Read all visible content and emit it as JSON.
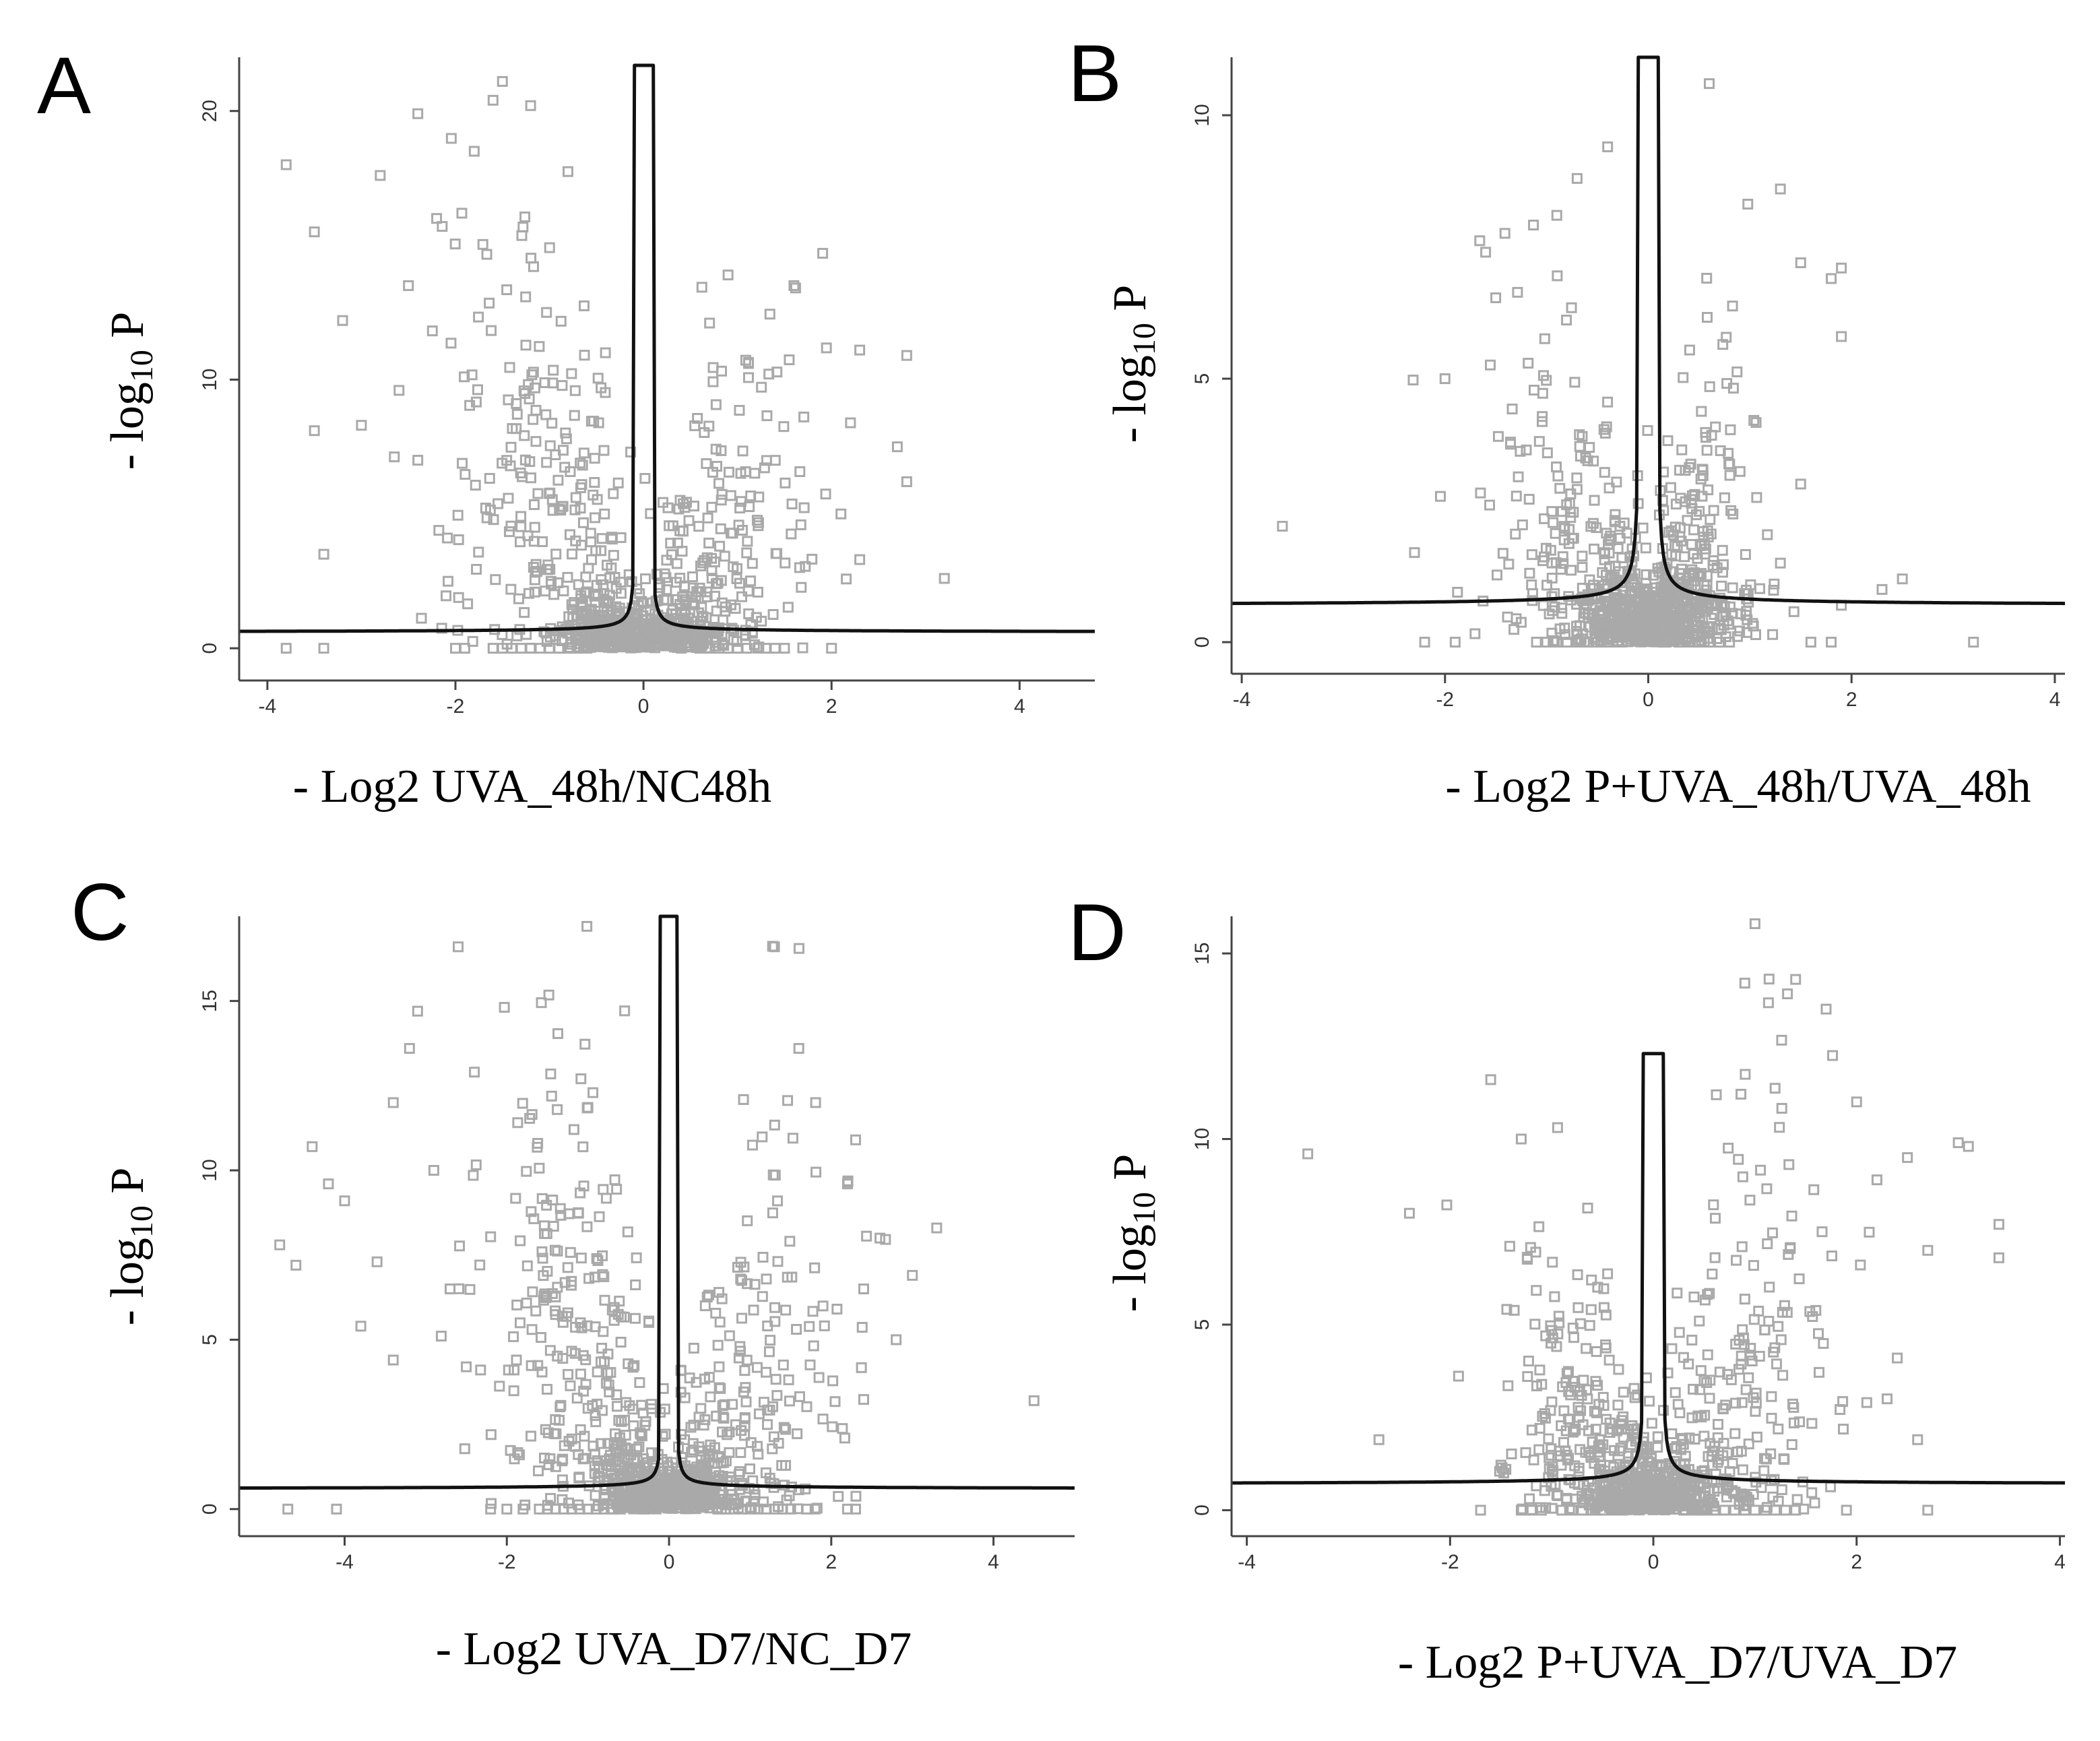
{
  "colors": {
    "point": "#a9a9a9",
    "threshold": "#111111",
    "axis": "#444444"
  },
  "chart_data": [
    {
      "type": "scatter",
      "panel": "A",
      "xlabel": "- Log2 UVA_48h/NC48h",
      "ylabel_main": "- log",
      "ylabel_sub": "10",
      "ylabel_end": " P",
      "xlim": [
        -4.3,
        4.8
      ],
      "ylim": [
        -1.2,
        22.0
      ],
      "xticks": [
        -4,
        -2,
        0,
        2,
        4
      ],
      "yticks": [
        0,
        10,
        20
      ],
      "threshold": {
        "peak": 21.7,
        "spread": 0.8,
        "base": 0.6
      },
      "clusters": [
        {
          "n": 260,
          "xc": -1.0,
          "xs": 0.6,
          "ys": 6.5
        },
        {
          "n": 190,
          "xc": 0.8,
          "xs": 0.55,
          "ys": 5
        },
        {
          "n": 120,
          "xc": -0.35,
          "xs": 0.2,
          "ys": 1.2
        },
        {
          "n": 80,
          "xc": 0.35,
          "xs": 0.2,
          "ys": 1.2
        }
      ],
      "outliers": [
        [
          -3.8,
          18
        ],
        [
          -3.5,
          15.5
        ],
        [
          -3.2,
          12.2
        ],
        [
          -3.4,
          3.5
        ],
        [
          -2.8,
          17.6
        ],
        [
          -2.4,
          19.9
        ],
        [
          -1.5,
          21.1
        ],
        [
          -1.6,
          20.4
        ],
        [
          -1.2,
          20.2
        ],
        [
          -2.2,
          16
        ],
        [
          -2.5,
          13.5
        ],
        [
          -3.0,
          8.3
        ],
        [
          -2.6,
          9.6
        ],
        [
          -2.4,
          7.0
        ],
        [
          -1.8,
          18.5
        ],
        [
          -3.5,
          8.1
        ],
        [
          1.6,
          13.5
        ],
        [
          2.3,
          11.1
        ],
        [
          2.8,
          10.9
        ],
        [
          2.7,
          7.5
        ],
        [
          2.8,
          6.2
        ],
        [
          3.2,
          2.6
        ],
        [
          2.1,
          5.0
        ],
        [
          2.3,
          3.3
        ]
      ],
      "baseline_points": [
        -3.8,
        -3.4,
        -2.0,
        -1.9,
        -1.6,
        -1.5,
        -1.4,
        -1.3,
        -1.2,
        -1.1,
        -1.0,
        -0.9,
        -0.8,
        -0.7,
        -0.6,
        0.6,
        0.7,
        0.8,
        0.9,
        1.0,
        1.1,
        1.3,
        1.4,
        1.5,
        2.0
      ]
    },
    {
      "type": "scatter",
      "panel": "B",
      "xlabel": "- Log2 P+UVA_48h/UVA_48h",
      "ylabel_main": "- log",
      "ylabel_sub": "10",
      "ylabel_end": " P",
      "xlim": [
        -4.1,
        4.1
      ],
      "ylim": [
        -0.6,
        11.1
      ],
      "xticks": [
        -4,
        -2,
        0,
        2,
        4
      ],
      "yticks": [
        0,
        5,
        10
      ],
      "threshold": {
        "peak": 11.1,
        "spread": 0.85,
        "base": 0.7
      },
      "clusters": [
        {
          "n": 230,
          "xc": -0.6,
          "xs": 0.55,
          "ys": 2.8
        },
        {
          "n": 200,
          "xc": 0.45,
          "xs": 0.28,
          "ys": 3.4
        },
        {
          "n": 140,
          "xc": -0.1,
          "xs": 0.2,
          "ys": 0.9
        },
        {
          "n": 60,
          "xc": 0.15,
          "xs": 0.2,
          "ys": 0.9
        }
      ],
      "outliers": [
        [
          -3.6,
          2.2
        ],
        [
          -2.3,
          1.7
        ],
        [
          -2.0,
          5.0
        ],
        [
          -1.6,
          7.4
        ],
        [
          -0.9,
          8.1
        ],
        [
          -0.7,
          8.8
        ],
        [
          -0.4,
          9.4
        ],
        [
          0.6,
          10.6
        ],
        [
          1.3,
          8.6
        ],
        [
          1.5,
          7.2
        ],
        [
          1.8,
          6.9
        ],
        [
          1.9,
          7.1
        ],
        [
          1.9,
          5.8
        ],
        [
          2.5,
          1.2
        ],
        [
          2.3,
          1.0
        ],
        [
          1.9,
          0.7
        ],
        [
          1.3,
          1.5
        ],
        [
          1.5,
          3.0
        ]
      ],
      "baseline_points": [
        -2.2,
        -1.9,
        -1.1,
        -1.0,
        -0.9,
        -0.8,
        -0.7,
        -0.6,
        -0.5,
        -0.4,
        -0.3,
        0.3,
        0.4,
        0.5,
        0.6,
        0.7,
        0.8,
        1.6,
        1.8,
        3.2
      ]
    },
    {
      "type": "scatter",
      "panel": "C",
      "xlabel": "- Log2 UVA_D7/NC_D7",
      "ylabel_main": "- log",
      "ylabel_sub": "10",
      "ylabel_end": " P",
      "xlim": [
        -5.3,
        5.0
      ],
      "ylim": [
        -0.8,
        17.5
      ],
      "xticks": [
        -4,
        -2,
        0,
        2,
        4
      ],
      "yticks": [
        0,
        5,
        10,
        15
      ],
      "threshold": {
        "peak": 17.5,
        "spread": 0.55,
        "base": 0.6
      },
      "clusters": [
        {
          "n": 270,
          "xc": -1.1,
          "xs": 0.6,
          "ys": 5.5
        },
        {
          "n": 210,
          "xc": 0.9,
          "xs": 0.6,
          "ys": 4.5
        },
        {
          "n": 110,
          "xc": -0.35,
          "xs": 0.22,
          "ys": 1.2
        },
        {
          "n": 80,
          "xc": 0.35,
          "xs": 0.22,
          "ys": 1.2
        }
      ],
      "outliers": [
        [
          -4.8,
          7.8
        ],
        [
          -4.6,
          7.2
        ],
        [
          -4.4,
          10.7
        ],
        [
          -4.2,
          9.6
        ],
        [
          -4.0,
          9.1
        ],
        [
          -3.8,
          5.4
        ],
        [
          -3.6,
          7.3
        ],
        [
          -3.4,
          4.4
        ],
        [
          -3.2,
          13.6
        ],
        [
          -3.1,
          14.7
        ],
        [
          -2.6,
          16.6
        ],
        [
          -3.4,
          12.0
        ],
        [
          -2.9,
          10.0
        ],
        [
          -2.7,
          6.5
        ],
        [
          -2.5,
          4.2
        ],
        [
          -2.4,
          12.9
        ],
        [
          1.3,
          16.6
        ],
        [
          1.6,
          13.6
        ],
        [
          2.2,
          9.6
        ],
        [
          2.3,
          10.9
        ],
        [
          2.6,
          8.0
        ],
        [
          3.0,
          6.9
        ],
        [
          3.3,
          8.3
        ],
        [
          4.5,
          3.2
        ],
        [
          2.8,
          5.0
        ],
        [
          2.4,
          6.5
        ]
      ],
      "baseline_points": [
        -4.7,
        -4.1,
        -2.2,
        -2.0,
        -1.8,
        -1.6,
        -1.5,
        -1.4,
        -1.3,
        -1.2,
        -1.1,
        -1.0,
        -0.9,
        -0.8,
        -0.7,
        -0.6,
        0.6,
        0.7,
        0.8,
        0.9,
        1.0,
        1.1,
        1.2,
        1.3,
        1.4,
        1.5,
        1.7,
        1.8,
        2.2,
        2.3
      ]
    },
    {
      "type": "scatter",
      "panel": "D",
      "xlabel": "- Log2 P+UVA_D7/UVA_D7",
      "ylabel_main": "- log",
      "ylabel_sub": "10",
      "ylabel_end": " P",
      "xlim": [
        -4.15,
        4.05
      ],
      "ylim": [
        -0.7,
        16.0
      ],
      "xticks": [
        -4,
        -2,
        0,
        2,
        4
      ],
      "yticks": [
        0,
        5,
        10,
        15
      ],
      "threshold": {
        "peak": 12.3,
        "spread": 0.8,
        "base": 0.7
      },
      "clusters": [
        {
          "n": 220,
          "xc": -0.6,
          "xs": 0.45,
          "ys": 3.5
        },
        {
          "n": 230,
          "xc": 0.75,
          "xs": 0.55,
          "ys": 5
        },
        {
          "n": 120,
          "xc": -0.1,
          "xs": 0.18,
          "ys": 0.9
        },
        {
          "n": 60,
          "xc": 0.15,
          "xs": 0.2,
          "ys": 0.9
        }
      ],
      "outliers": [
        [
          -3.4,
          9.6
        ],
        [
          -2.7,
          1.9
        ],
        [
          -2.4,
          8.0
        ],
        [
          -1.6,
          11.6
        ],
        [
          -1.3,
          10.0
        ],
        [
          1.0,
          15.8
        ],
        [
          1.4,
          14.3
        ],
        [
          0.9,
          14.2
        ],
        [
          1.7,
          13.5
        ],
        [
          3.0,
          9.9
        ],
        [
          3.1,
          9.8
        ],
        [
          3.4,
          7.7
        ],
        [
          3.4,
          6.8
        ],
        [
          2.7,
          7.0
        ],
        [
          2.5,
          9.5
        ],
        [
          2.2,
          8.9
        ],
        [
          2.0,
          11.0
        ],
        [
          2.4,
          4.1
        ],
        [
          2.3,
          3.0
        ],
        [
          2.1,
          2.9
        ],
        [
          2.6,
          1.9
        ],
        [
          2.7,
          0.0
        ]
      ],
      "baseline_points": [
        -1.7,
        -1.3,
        -1.2,
        -1.1,
        -0.9,
        -0.8,
        -0.7,
        -0.6,
        -0.5,
        -0.4,
        -0.3,
        0.3,
        0.4,
        0.5,
        0.6,
        0.7,
        0.8,
        0.9,
        1.0,
        1.1,
        1.2,
        1.3,
        1.4,
        1.9
      ]
    }
  ]
}
